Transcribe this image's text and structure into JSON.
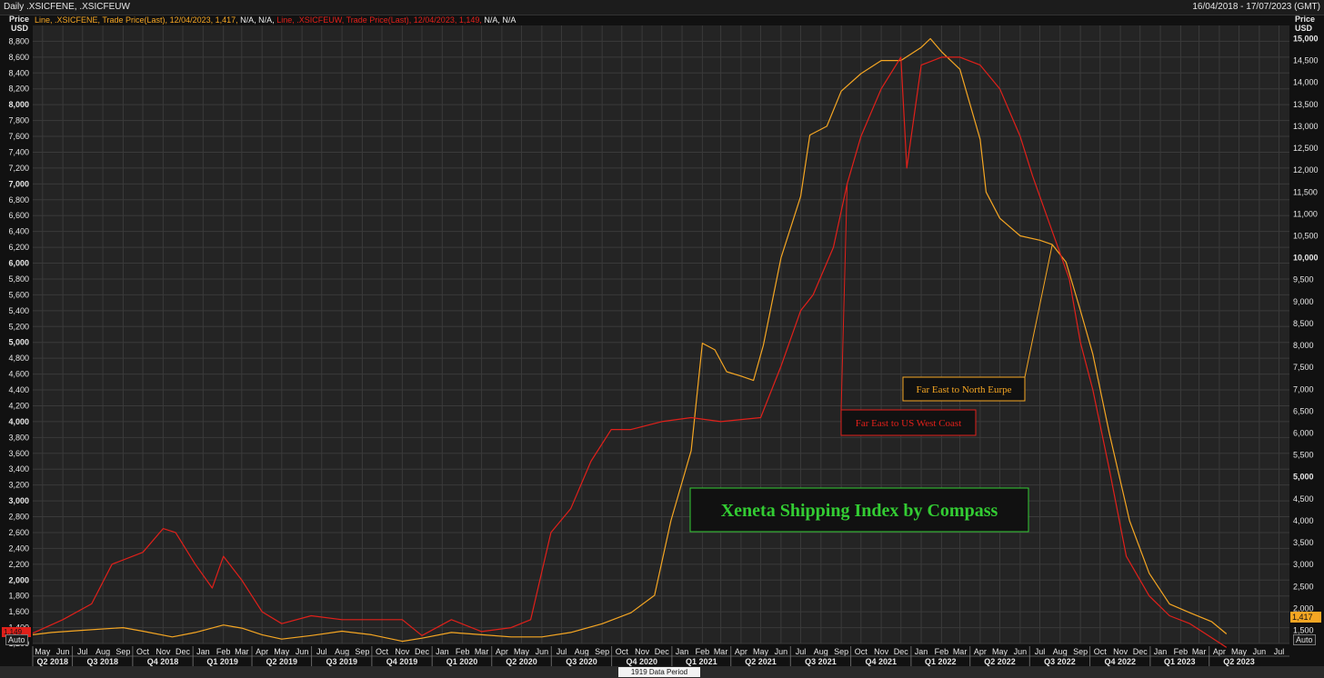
{
  "header": {
    "title": "Daily .XSICFENE, .XSICFEUW",
    "date_range": "16/04/2018 - 17/07/2023 (GMT)"
  },
  "legend": {
    "s1_prefix": "Line, .XSICFENE, Trade Price(Last),",
    "s1_values": "12/04/2023, 1,417,",
    "s1_na": "N/A, N/A,",
    "s2_prefix": "Line, .XSICFEUW, Trade Price(Last),",
    "s2_values": "12/04/2023, 1,149,",
    "s2_na": "N/A, N/A"
  },
  "axis_labels": {
    "left_title_1": "Price",
    "left_title_2": "USD",
    "right_title_1": "Price",
    "right_title_2": "USD",
    "auto": "Auto"
  },
  "footer": {
    "label": "1919 Data Period"
  },
  "colors": {
    "fene": "#f5a623",
    "feuw": "#e0201a",
    "background": "#111111",
    "plot_bg": "#242424",
    "grid": "#3a3a3a",
    "annotation_green": "#33cc33"
  },
  "chart_data": {
    "type": "line",
    "title": "",
    "x_range": [
      "2018-04-16",
      "2023-07-17"
    ],
    "x_month_labels": [
      "May",
      "Jun",
      "Jul",
      "Aug",
      "Sep",
      "Oct",
      "Nov",
      "Dec",
      "Jan",
      "Feb",
      "Mar",
      "Apr",
      "May",
      "Jun",
      "Jul",
      "Aug",
      "Sep",
      "Oct",
      "Nov",
      "Dec",
      "Jan",
      "Feb",
      "Mar",
      "Apr",
      "May",
      "Jun",
      "Jul",
      "Aug",
      "Sep",
      "Oct",
      "Nov",
      "Dec",
      "Jan",
      "Feb",
      "Mar",
      "Apr",
      "May",
      "Jun",
      "Jul",
      "Aug",
      "Sep",
      "Oct",
      "Nov",
      "Dec",
      "Jan",
      "Feb",
      "Mar",
      "Apr",
      "May",
      "Jun",
      "Jul",
      "Aug",
      "Sep",
      "Oct",
      "Nov",
      "Dec",
      "Jan",
      "Feb",
      "Mar",
      "Apr",
      "May",
      "Jun",
      "Jul"
    ],
    "x_quarter_labels": [
      "Q2 2018",
      "Q3 2018",
      "Q4 2018",
      "Q1 2019",
      "Q2 2019",
      "Q3 2019",
      "Q4 2019",
      "Q1 2020",
      "Q2 2020",
      "Q3 2020",
      "Q4 2020",
      "Q1 2021",
      "Q2 2021",
      "Q3 2021",
      "Q4 2021",
      "Q1 2022",
      "Q2 2022",
      "Q3 2022",
      "Q4 2022",
      "Q1 2023",
      "Q2 2023"
    ],
    "left_axis": {
      "label": "Price USD",
      "range": [
        1200,
        9000
      ],
      "ticks": [
        "1,200",
        "1,400",
        "1,600",
        "1,800",
        "2,000",
        "2,200",
        "2,400",
        "2,600",
        "2,800",
        "3,000",
        "3,200",
        "3,400",
        "3,600",
        "3,800",
        "4,000",
        "4,200",
        "4,400",
        "4,600",
        "4,800",
        "5,000",
        "5,200",
        "5,400",
        "5,600",
        "5,800",
        "6,000",
        "6,200",
        "6,400",
        "6,600",
        "6,800",
        "7,000",
        "7,200",
        "7,400",
        "7,600",
        "7,800",
        "8,000",
        "8,200",
        "8,400",
        "8,600",
        "8,800"
      ]
    },
    "right_axis": {
      "label": "Price USD",
      "range": [
        1200,
        15300
      ],
      "ticks": [
        "1,500",
        "2,000",
        "2,500",
        "3,000",
        "3,500",
        "4,000",
        "4,500",
        "5,000",
        "5,500",
        "6,000",
        "6,500",
        "7,000",
        "7,500",
        "8,000",
        "8,500",
        "9,000",
        "9,500",
        "10,000",
        "10,500",
        "11,000",
        "11,500",
        "12,000",
        "12,500",
        "13,000",
        "13,500",
        "14,000",
        "14,500",
        "15,000"
      ]
    },
    "series": [
      {
        "name": "Far East to North Eurpe",
        "ticker": ".XSICFENE",
        "axis": "right",
        "last_value": "1,417",
        "points": [
          [
            "2018-04-16",
            1400
          ],
          [
            "2018-05-15",
            1450
          ],
          [
            "2018-07-01",
            1500
          ],
          [
            "2018-09-01",
            1560
          ],
          [
            "2018-10-01",
            1480
          ],
          [
            "2018-11-15",
            1350
          ],
          [
            "2018-12-20",
            1450
          ],
          [
            "2019-02-01",
            1620
          ],
          [
            "2019-03-01",
            1550
          ],
          [
            "2019-04-01",
            1400
          ],
          [
            "2019-05-01",
            1300
          ],
          [
            "2019-06-15",
            1380
          ],
          [
            "2019-08-01",
            1480
          ],
          [
            "2019-09-15",
            1400
          ],
          [
            "2019-11-01",
            1250
          ],
          [
            "2019-12-01",
            1320
          ],
          [
            "2020-01-15",
            1450
          ],
          [
            "2020-03-01",
            1400
          ],
          [
            "2020-04-15",
            1350
          ],
          [
            "2020-06-01",
            1350
          ],
          [
            "2020-07-15",
            1450
          ],
          [
            "2020-09-01",
            1650
          ],
          [
            "2020-10-15",
            1900
          ],
          [
            "2020-11-20",
            2300
          ],
          [
            "2020-12-15",
            4000
          ],
          [
            "2021-01-15",
            5600
          ],
          [
            "2021-02-01",
            8050
          ],
          [
            "2021-02-20",
            7900
          ],
          [
            "2021-03-10",
            7400
          ],
          [
            "2021-04-01",
            7300
          ],
          [
            "2021-04-20",
            7200
          ],
          [
            "2021-05-05",
            8000
          ],
          [
            "2021-06-01",
            10000
          ],
          [
            "2021-07-01",
            11400
          ],
          [
            "2021-07-15",
            12800
          ],
          [
            "2021-08-10",
            13000
          ],
          [
            "2021-09-01",
            13800
          ],
          [
            "2021-10-01",
            14200
          ],
          [
            "2021-11-01",
            14500
          ],
          [
            "2021-12-01",
            14500
          ],
          [
            "2022-01-01",
            14800
          ],
          [
            "2022-01-15",
            15000
          ],
          [
            "2022-02-01",
            14700
          ],
          [
            "2022-03-01",
            14300
          ],
          [
            "2022-04-01",
            12700
          ],
          [
            "2022-04-10",
            11500
          ],
          [
            "2022-05-01",
            10900
          ],
          [
            "2022-06-01",
            10500
          ],
          [
            "2022-07-01",
            10400
          ],
          [
            "2022-07-20",
            10300
          ],
          [
            "2022-08-10",
            9900
          ],
          [
            "2022-09-01",
            8800
          ],
          [
            "2022-09-20",
            7800
          ],
          [
            "2022-10-15",
            6000
          ],
          [
            "2022-11-15",
            4000
          ],
          [
            "2022-12-15",
            2800
          ],
          [
            "2023-01-15",
            2100
          ],
          [
            "2023-02-15",
            1900
          ],
          [
            "2023-03-20",
            1700
          ],
          [
            "2023-04-12",
            1417
          ]
        ]
      },
      {
        "name": "Far East to US West Coast",
        "ticker": ".XSICFEUW",
        "axis": "left",
        "last_value": "1,149",
        "points": [
          [
            "2018-04-16",
            1330
          ],
          [
            "2018-06-01",
            1500
          ],
          [
            "2018-07-15",
            1700
          ],
          [
            "2018-08-15",
            2200
          ],
          [
            "2018-10-01",
            2350
          ],
          [
            "2018-11-01",
            2650
          ],
          [
            "2018-11-20",
            2600
          ],
          [
            "2018-12-20",
            2200
          ],
          [
            "2019-01-15",
            1900
          ],
          [
            "2019-02-01",
            2300
          ],
          [
            "2019-03-01",
            2000
          ],
          [
            "2019-04-01",
            1600
          ],
          [
            "2019-05-01",
            1450
          ],
          [
            "2019-06-15",
            1550
          ],
          [
            "2019-08-01",
            1500
          ],
          [
            "2019-09-15",
            1500
          ],
          [
            "2019-11-01",
            1500
          ],
          [
            "2019-12-01",
            1300
          ],
          [
            "2020-01-15",
            1500
          ],
          [
            "2020-03-01",
            1350
          ],
          [
            "2020-04-15",
            1400
          ],
          [
            "2020-05-15",
            1500
          ],
          [
            "2020-06-15",
            2600
          ],
          [
            "2020-07-15",
            2900
          ],
          [
            "2020-08-15",
            3500
          ],
          [
            "2020-09-15",
            3900
          ],
          [
            "2020-10-15",
            3900
          ],
          [
            "2020-12-01",
            4000
          ],
          [
            "2021-01-15",
            4050
          ],
          [
            "2021-03-01",
            4000
          ],
          [
            "2021-05-01",
            4050
          ],
          [
            "2021-06-01",
            4700
          ],
          [
            "2021-07-01",
            5400
          ],
          [
            "2021-07-20",
            5600
          ],
          [
            "2021-08-20",
            6200
          ],
          [
            "2021-09-10",
            7000
          ],
          [
            "2021-10-01",
            7600
          ],
          [
            "2021-11-01",
            8200
          ],
          [
            "2021-12-01",
            8600
          ],
          [
            "2021-12-10",
            7200
          ],
          [
            "2022-01-01",
            8500
          ],
          [
            "2022-02-01",
            8600
          ],
          [
            "2022-03-01",
            8600
          ],
          [
            "2022-04-01",
            8500
          ],
          [
            "2022-05-01",
            8200
          ],
          [
            "2022-06-01",
            7600
          ],
          [
            "2022-06-20",
            7100
          ],
          [
            "2022-07-20",
            6400
          ],
          [
            "2022-08-15",
            5800
          ],
          [
            "2022-09-01",
            5000
          ],
          [
            "2022-09-20",
            4400
          ],
          [
            "2022-10-15",
            3400
          ],
          [
            "2022-11-10",
            2300
          ],
          [
            "2022-12-15",
            1800
          ],
          [
            "2023-01-15",
            1550
          ],
          [
            "2023-02-15",
            1450
          ],
          [
            "2023-03-15",
            1300
          ],
          [
            "2023-04-12",
            1149
          ]
        ]
      }
    ],
    "annotations": [
      {
        "text": "Far East to North Eurpe",
        "color": "#f5a623"
      },
      {
        "text": "Far East to US West Coast",
        "color": "#e0201a"
      },
      {
        "text": "Xeneta Shipping Index by Compass",
        "color": "#33cc33"
      }
    ],
    "grid": true
  }
}
